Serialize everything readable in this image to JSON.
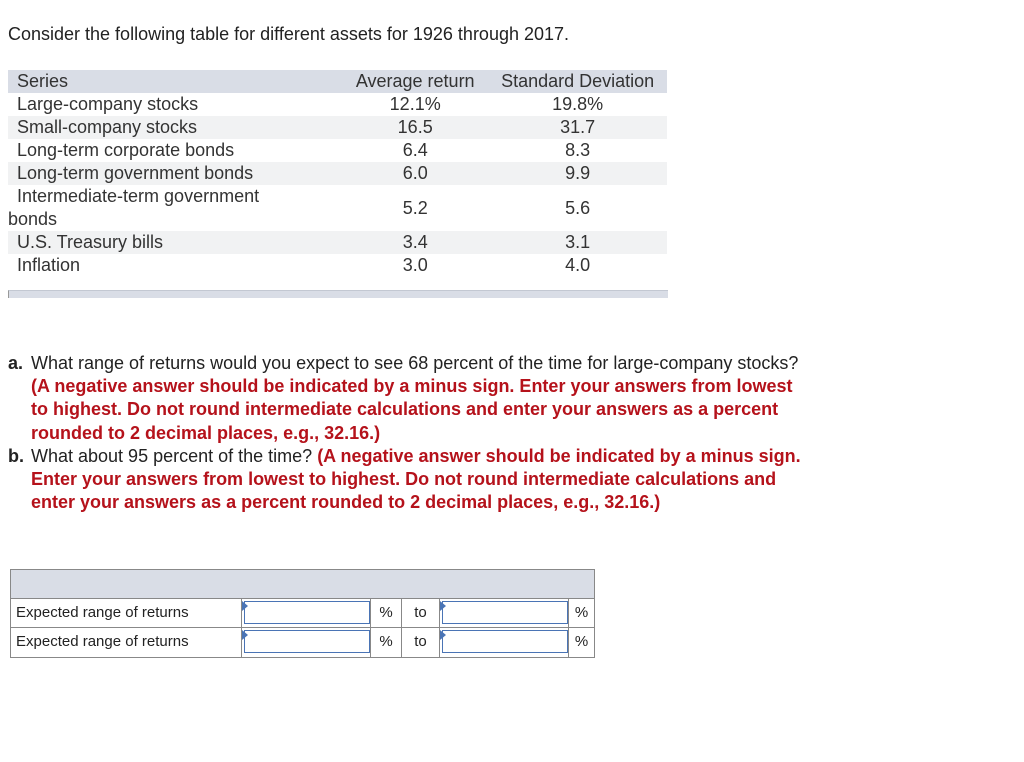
{
  "intro": "Consider the following table for different assets for 1926 through 2017.",
  "table": {
    "headers": [
      "Series",
      "Average return",
      "Standard Deviation"
    ],
    "rows": [
      {
        "series": "Large-company stocks",
        "avg": "12.1%",
        "sd": "19.8%"
      },
      {
        "series": "Small-company stocks",
        "avg": "16.5",
        "sd": "31.7"
      },
      {
        "series": "Long-term corporate bonds",
        "avg": "6.4",
        "sd": "8.3"
      },
      {
        "series": "Long-term government bonds",
        "avg": "6.0",
        "sd": "9.9"
      },
      {
        "series_line1": "Intermediate-term government",
        "series_line2": "bonds",
        "avg": "5.2",
        "sd": "5.6"
      },
      {
        "series": "U.S. Treasury bills",
        "avg": "3.4",
        "sd": "3.1"
      },
      {
        "series": "Inflation",
        "avg": "3.0",
        "sd": "4.0"
      }
    ]
  },
  "questions": {
    "a": {
      "label": "a.",
      "text": "What range of returns would you expect to see 68 percent of the time for large-company stocks?",
      "instruction": "(A negative answer should be indicated by a minus sign. Enter your answers from lowest to highest. Do not round intermediate calculations and enter your answers as a percent rounded to 2 decimal places, e.g., 32.16.)"
    },
    "b": {
      "label": "b.",
      "text": "What about 95 percent of the time?",
      "instruction": "(A negative answer should be indicated by a minus sign. Enter your answers from lowest to highest. Do not round intermediate calculations and enter your answers as a percent rounded to 2 decimal places, e.g., 32.16.)"
    }
  },
  "answers": {
    "rows": [
      {
        "label": "Expected range of returns",
        "unit1": "%",
        "sep": "to",
        "unit2": "%",
        "value1": "",
        "value2": ""
      },
      {
        "label": "Expected range of returns",
        "unit1": "%",
        "sep": "to",
        "unit2": "%",
        "value1": "",
        "value2": ""
      }
    ]
  }
}
